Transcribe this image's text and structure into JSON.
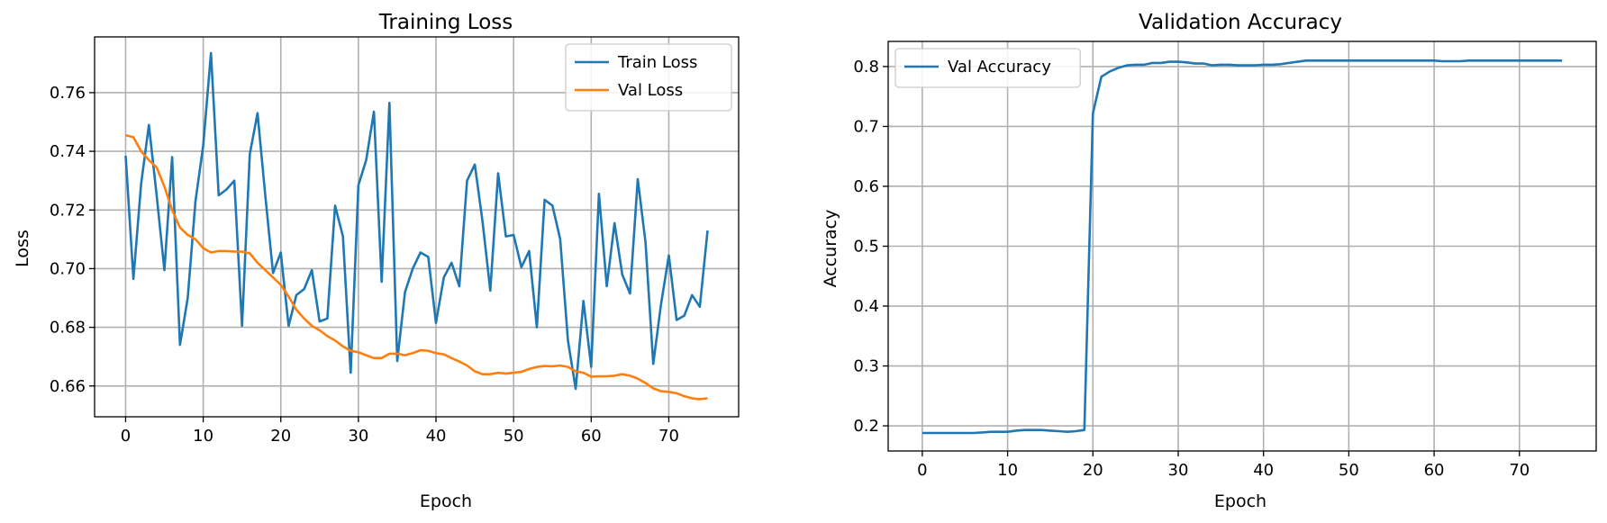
{
  "colors": {
    "train": "#1f77b4",
    "val": "#ff7f0e"
  },
  "chart_data": [
    {
      "type": "line",
      "title": "Training Loss",
      "xlabel": "Epoch",
      "ylabel": "Loss",
      "xlim": [
        -4,
        79
      ],
      "ylim": [
        0.6495,
        0.779
      ],
      "xticks": [
        0,
        10,
        20,
        30,
        40,
        50,
        60,
        70
      ],
      "yticks": [
        0.66,
        0.68,
        0.7,
        0.72,
        0.74,
        0.76
      ],
      "ytick_decimals": 2,
      "grid": true,
      "legend": "top-right",
      "x": [
        0,
        1,
        2,
        3,
        4,
        5,
        6,
        7,
        8,
        9,
        10,
        11,
        12,
        13,
        14,
        15,
        16,
        17,
        18,
        19,
        20,
        21,
        22,
        23,
        24,
        25,
        26,
        27,
        28,
        29,
        30,
        31,
        32,
        33,
        34,
        35,
        36,
        37,
        38,
        39,
        40,
        41,
        42,
        43,
        44,
        45,
        46,
        47,
        48,
        49,
        50,
        51,
        52,
        53,
        54,
        55,
        56,
        57,
        58,
        59,
        60,
        61,
        62,
        63,
        64,
        65,
        66,
        67,
        68,
        69,
        70,
        71,
        72,
        73,
        74,
        75
      ],
      "series": [
        {
          "name": "Train Loss",
          "color_key": "train",
          "values": [
            0.7385,
            0.6965,
            0.729,
            0.749,
            0.725,
            0.6995,
            0.738,
            0.674,
            0.69,
            0.723,
            0.742,
            0.7735,
            0.725,
            0.727,
            0.73,
            0.6805,
            0.739,
            0.753,
            0.725,
            0.6985,
            0.7055,
            0.6805,
            0.691,
            0.693,
            0.6995,
            0.682,
            0.683,
            0.7215,
            0.711,
            0.6645,
            0.7285,
            0.737,
            0.7535,
            0.6955,
            0.7565,
            0.6685,
            0.692,
            0.7,
            0.7055,
            0.704,
            0.6815,
            0.697,
            0.702,
            0.694,
            0.73,
            0.7355,
            0.716,
            0.6925,
            0.7325,
            0.711,
            0.7115,
            0.7005,
            0.706,
            0.68,
            0.7235,
            0.7215,
            0.71,
            0.6755,
            0.659,
            0.689,
            0.6665,
            0.7255,
            0.694,
            0.7155,
            0.698,
            0.6915,
            0.7305,
            0.709,
            0.6675,
            0.688,
            0.7045,
            0.6825,
            0.684,
            0.691,
            0.687,
            0.713
          ]
        },
        {
          "name": "Val Loss",
          "color_key": "val",
          "values": [
            0.7455,
            0.7448,
            0.74,
            0.737,
            0.7345,
            0.728,
            0.72,
            0.714,
            0.7115,
            0.71,
            0.707,
            0.7055,
            0.706,
            0.706,
            0.7058,
            0.7058,
            0.7052,
            0.702,
            0.6995,
            0.697,
            0.6945,
            0.6905,
            0.686,
            0.683,
            0.6805,
            0.679,
            0.677,
            0.6755,
            0.6735,
            0.672,
            0.6715,
            0.6705,
            0.6695,
            0.6695,
            0.671,
            0.671,
            0.6705,
            0.6712,
            0.6722,
            0.672,
            0.6712,
            0.6708,
            0.6695,
            0.6683,
            0.667,
            0.665,
            0.664,
            0.664,
            0.6645,
            0.6642,
            0.6645,
            0.6648,
            0.6658,
            0.6665,
            0.6668,
            0.6667,
            0.667,
            0.6665,
            0.665,
            0.6645,
            0.6632,
            0.6633,
            0.6633,
            0.6635,
            0.664,
            0.6635,
            0.6625,
            0.661,
            0.6592,
            0.6582,
            0.658,
            0.6575,
            0.6565,
            0.6558,
            0.6555,
            0.6558
          ]
        }
      ]
    },
    {
      "type": "line",
      "title": "Validation Accuracy",
      "xlabel": "Epoch",
      "ylabel": "Accuracy",
      "xlim": [
        -4,
        79
      ],
      "ylim": [
        0.158,
        0.842
      ],
      "xticks": [
        0,
        10,
        20,
        30,
        40,
        50,
        60,
        70
      ],
      "yticks": [
        0.2,
        0.3,
        0.4,
        0.5,
        0.6,
        0.7,
        0.8
      ],
      "ytick_decimals": 1,
      "grid": true,
      "legend": "top-left",
      "x": [
        0,
        1,
        2,
        3,
        4,
        5,
        6,
        7,
        8,
        9,
        10,
        11,
        12,
        13,
        14,
        15,
        16,
        17,
        18,
        19,
        20,
        21,
        22,
        23,
        24,
        25,
        26,
        27,
        28,
        29,
        30,
        31,
        32,
        33,
        34,
        35,
        36,
        37,
        38,
        39,
        40,
        41,
        42,
        43,
        44,
        45,
        46,
        47,
        48,
        49,
        50,
        51,
        52,
        53,
        54,
        55,
        56,
        57,
        58,
        59,
        60,
        61,
        62,
        63,
        64,
        65,
        66,
        67,
        68,
        69,
        70,
        71,
        72,
        73,
        74,
        75
      ],
      "series": [
        {
          "name": "Val Accuracy",
          "color_key": "train",
          "values": [
            0.188,
            0.188,
            0.188,
            0.188,
            0.188,
            0.188,
            0.188,
            0.189,
            0.19,
            0.19,
            0.19,
            0.192,
            0.193,
            0.193,
            0.193,
            0.192,
            0.191,
            0.19,
            0.191,
            0.193,
            0.722,
            0.783,
            0.792,
            0.798,
            0.802,
            0.803,
            0.803,
            0.806,
            0.806,
            0.808,
            0.808,
            0.807,
            0.805,
            0.805,
            0.802,
            0.803,
            0.803,
            0.802,
            0.802,
            0.802,
            0.803,
            0.803,
            0.804,
            0.806,
            0.808,
            0.81,
            0.81,
            0.81,
            0.81,
            0.81,
            0.81,
            0.81,
            0.81,
            0.81,
            0.81,
            0.81,
            0.81,
            0.81,
            0.81,
            0.81,
            0.81,
            0.809,
            0.809,
            0.809,
            0.81,
            0.81,
            0.81,
            0.81,
            0.81,
            0.81,
            0.81,
            0.81,
            0.81,
            0.81,
            0.81,
            0.81
          ]
        }
      ]
    }
  ]
}
